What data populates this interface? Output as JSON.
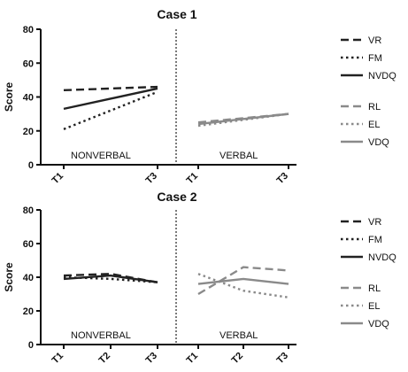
{
  "chart_data": [
    {
      "type": "line",
      "title": "Case 1",
      "ylabel": "Score",
      "ylim": [
        0,
        80
      ],
      "yticks": [
        0,
        20,
        40,
        60,
        80
      ],
      "grid": false,
      "panels": [
        {
          "label": "NONVERBAL",
          "categories": [
            "T1",
            "T3"
          ],
          "series": [
            {
              "name": "VR",
              "values": [
                44,
                46
              ],
              "style": "dashed",
              "color": "#222222"
            },
            {
              "name": "FM",
              "values": [
                21,
                43
              ],
              "style": "dotted",
              "color": "#222222"
            },
            {
              "name": "NVDQ",
              "values": [
                33,
                45
              ],
              "style": "solid",
              "color": "#222222"
            }
          ]
        },
        {
          "label": "VERBAL",
          "categories": [
            "T1",
            "T3"
          ],
          "series": [
            {
              "name": "RL",
              "values": [
                25,
                30
              ],
              "style": "dashed",
              "color": "#8a8a8a"
            },
            {
              "name": "EL",
              "values": [
                23,
                30
              ],
              "style": "dotted",
              "color": "#8a8a8a"
            },
            {
              "name": "VDQ",
              "values": [
                24,
                30
              ],
              "style": "solid",
              "color": "#8a8a8a"
            }
          ]
        }
      ],
      "legend_position": "right"
    },
    {
      "type": "line",
      "title": "Case 2",
      "ylabel": "Score",
      "ylim": [
        0,
        80
      ],
      "yticks": [
        0,
        20,
        40,
        60,
        80
      ],
      "grid": false,
      "panels": [
        {
          "label": "NONVERBAL",
          "categories": [
            "T1",
            "T2",
            "T3"
          ],
          "series": [
            {
              "name": "VR",
              "values": [
                41,
                42,
                37
              ],
              "style": "dashed",
              "color": "#222222"
            },
            {
              "name": "FM",
              "values": [
                40,
                39,
                37
              ],
              "style": "dotted",
              "color": "#222222"
            },
            {
              "name": "NVDQ",
              "values": [
                39,
                41,
                37
              ],
              "style": "solid",
              "color": "#222222"
            }
          ]
        },
        {
          "label": "VERBAL",
          "categories": [
            "T1",
            "T2",
            "T3"
          ],
          "series": [
            {
              "name": "RL",
              "values": [
                30,
                46,
                44
              ],
              "style": "dashed",
              "color": "#8a8a8a"
            },
            {
              "name": "EL",
              "values": [
                42,
                32,
                28
              ],
              "style": "dotted",
              "color": "#8a8a8a"
            },
            {
              "name": "VDQ",
              "values": [
                36,
                39,
                36
              ],
              "style": "solid",
              "color": "#8a8a8a"
            }
          ]
        }
      ],
      "legend_position": "right"
    }
  ]
}
